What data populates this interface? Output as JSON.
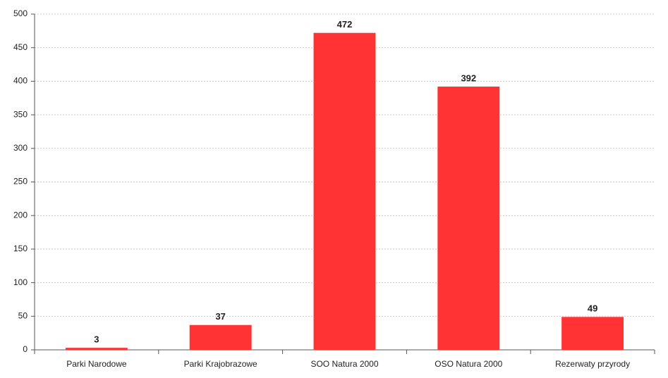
{
  "chart_data": {
    "type": "bar",
    "categories": [
      "Parki Narodowe",
      "Parki Krajobrazowe",
      "SOO Natura 2000",
      "OSO Natura 2000",
      "Rezerwaty przyrody"
    ],
    "values": [
      3,
      37,
      472,
      392,
      49
    ],
    "color": "#ff3333",
    "ylim": [
      0,
      500
    ],
    "yticks": [
      0,
      50,
      100,
      150,
      200,
      250,
      300,
      350,
      400,
      450,
      500
    ],
    "grid": true
  }
}
